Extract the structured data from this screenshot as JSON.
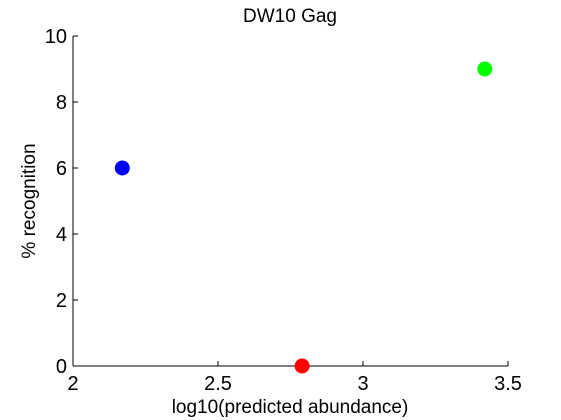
{
  "chart_data": {
    "type": "scatter",
    "title": "DW10 Gag",
    "xlabel": "log10(predicted abundance)",
    "ylabel": "% recognition",
    "xlim": [
      2,
      3.5
    ],
    "ylim": [
      0,
      10
    ],
    "xticks": [
      2,
      2.5,
      3,
      3.5
    ],
    "xtick_labels": [
      "2",
      "2.5",
      "3",
      "3.5"
    ],
    "yticks": [
      0,
      2,
      4,
      6,
      8,
      10
    ],
    "ytick_labels": [
      "0",
      "2",
      "4",
      "6",
      "8",
      "10"
    ],
    "grid": false,
    "points": [
      {
        "x": 2.17,
        "y": 6,
        "color": "#0000ff"
      },
      {
        "x": 2.79,
        "y": 0,
        "color": "#ff0000"
      },
      {
        "x": 3.42,
        "y": 9,
        "color": "#00ff00"
      }
    ]
  }
}
